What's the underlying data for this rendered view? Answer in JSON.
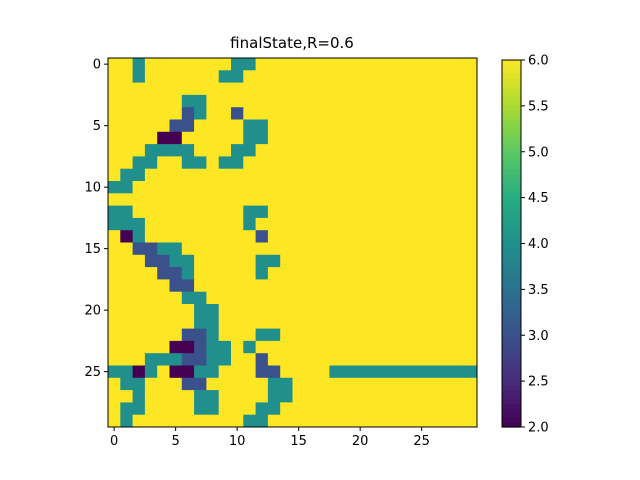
{
  "chart_data": {
    "type": "heatmap",
    "title": "finalState,R=0.6",
    "xlabel": "",
    "ylabel": "",
    "x_ticks": [
      "0",
      "5",
      "10",
      "15",
      "20",
      "25"
    ],
    "y_ticks": [
      "0",
      "5",
      "10",
      "15",
      "20",
      "25"
    ],
    "colorbar": {
      "min": 2.0,
      "max": 6.0,
      "ticks": [
        "2.0",
        "2.5",
        "3.0",
        "3.5",
        "4.0",
        "4.5",
        "5.0",
        "5.5",
        "6.0"
      ],
      "colormap": "viridis"
    },
    "rows": 30,
    "cols": 30,
    "grid": false,
    "default_value": 6,
    "cells": [
      [
        0,
        2,
        4
      ],
      [
        0,
        10,
        4
      ],
      [
        0,
        11,
        4
      ],
      [
        1,
        2,
        4
      ],
      [
        1,
        9,
        4
      ],
      [
        1,
        10,
        4
      ],
      [
        3,
        6,
        4
      ],
      [
        3,
        7,
        4
      ],
      [
        4,
        6,
        3
      ],
      [
        4,
        7,
        4
      ],
      [
        4,
        10,
        3
      ],
      [
        5,
        5,
        3
      ],
      [
        5,
        6,
        3
      ],
      [
        5,
        11,
        4
      ],
      [
        5,
        12,
        4
      ],
      [
        6,
        4,
        2
      ],
      [
        6,
        5,
        2
      ],
      [
        6,
        11,
        4
      ],
      [
        6,
        12,
        4
      ],
      [
        7,
        3,
        4
      ],
      [
        7,
        4,
        4
      ],
      [
        7,
        5,
        4
      ],
      [
        7,
        6,
        4
      ],
      [
        7,
        10,
        4
      ],
      [
        7,
        11,
        4
      ],
      [
        8,
        2,
        4
      ],
      [
        8,
        3,
        4
      ],
      [
        8,
        6,
        4
      ],
      [
        8,
        7,
        4
      ],
      [
        8,
        9,
        4
      ],
      [
        8,
        10,
        4
      ],
      [
        9,
        1,
        4
      ],
      [
        9,
        2,
        4
      ],
      [
        10,
        0,
        4
      ],
      [
        10,
        1,
        4
      ],
      [
        12,
        0,
        4
      ],
      [
        12,
        1,
        4
      ],
      [
        12,
        11,
        4
      ],
      [
        12,
        12,
        4
      ],
      [
        13,
        0,
        4
      ],
      [
        13,
        1,
        4
      ],
      [
        13,
        2,
        4
      ],
      [
        13,
        11,
        4
      ],
      [
        14,
        1,
        2
      ],
      [
        14,
        2,
        4
      ],
      [
        14,
        12,
        3
      ],
      [
        15,
        2,
        3
      ],
      [
        15,
        3,
        3
      ],
      [
        15,
        4,
        4
      ],
      [
        15,
        5,
        4
      ],
      [
        16,
        3,
        3
      ],
      [
        16,
        4,
        3
      ],
      [
        16,
        5,
        4
      ],
      [
        16,
        6,
        4
      ],
      [
        16,
        12,
        4
      ],
      [
        16,
        13,
        4
      ],
      [
        17,
        4,
        3
      ],
      [
        17,
        5,
        3
      ],
      [
        17,
        6,
        4
      ],
      [
        17,
        12,
        4
      ],
      [
        18,
        5,
        3
      ],
      [
        18,
        6,
        3
      ],
      [
        19,
        6,
        4
      ],
      [
        19,
        7,
        4
      ],
      [
        20,
        7,
        4
      ],
      [
        20,
        8,
        4
      ],
      [
        21,
        7,
        4
      ],
      [
        21,
        8,
        4
      ],
      [
        22,
        6,
        3
      ],
      [
        22,
        7,
        3
      ],
      [
        22,
        8,
        4
      ],
      [
        22,
        12,
        4
      ],
      [
        22,
        13,
        4
      ],
      [
        23,
        5,
        2
      ],
      [
        23,
        6,
        2
      ],
      [
        23,
        7,
        3
      ],
      [
        23,
        8,
        4
      ],
      [
        23,
        9,
        4
      ],
      [
        23,
        11,
        4
      ],
      [
        24,
        3,
        4
      ],
      [
        24,
        4,
        4
      ],
      [
        24,
        5,
        4
      ],
      [
        24,
        6,
        3
      ],
      [
        24,
        7,
        3
      ],
      [
        24,
        8,
        4
      ],
      [
        24,
        9,
        4
      ],
      [
        24,
        12,
        3
      ],
      [
        25,
        0,
        4
      ],
      [
        25,
        1,
        4
      ],
      [
        25,
        2,
        2
      ],
      [
        25,
        3,
        4
      ],
      [
        25,
        5,
        2
      ],
      [
        25,
        6,
        2
      ],
      [
        25,
        7,
        4
      ],
      [
        25,
        8,
        4
      ],
      [
        25,
        12,
        3
      ],
      [
        25,
        13,
        3
      ],
      [
        25,
        18,
        4
      ],
      [
        25,
        19,
        4
      ],
      [
        25,
        20,
        4
      ],
      [
        25,
        21,
        4
      ],
      [
        25,
        22,
        4
      ],
      [
        25,
        23,
        4
      ],
      [
        25,
        24,
        4
      ],
      [
        25,
        25,
        4
      ],
      [
        25,
        26,
        4
      ],
      [
        25,
        27,
        4
      ],
      [
        25,
        28,
        4
      ],
      [
        25,
        29,
        4
      ],
      [
        26,
        1,
        4
      ],
      [
        26,
        2,
        4
      ],
      [
        26,
        6,
        3
      ],
      [
        26,
        7,
        3
      ],
      [
        26,
        13,
        4
      ],
      [
        26,
        14,
        4
      ],
      [
        27,
        2,
        4
      ],
      [
        27,
        7,
        4
      ],
      [
        27,
        8,
        4
      ],
      [
        27,
        13,
        4
      ],
      [
        27,
        14,
        4
      ],
      [
        28,
        1,
        4
      ],
      [
        28,
        2,
        4
      ],
      [
        28,
        7,
        4
      ],
      [
        28,
        8,
        4
      ],
      [
        28,
        12,
        4
      ],
      [
        28,
        13,
        4
      ],
      [
        29,
        1,
        4
      ],
      [
        29,
        11,
        4
      ],
      [
        29,
        12,
        4
      ]
    ]
  }
}
